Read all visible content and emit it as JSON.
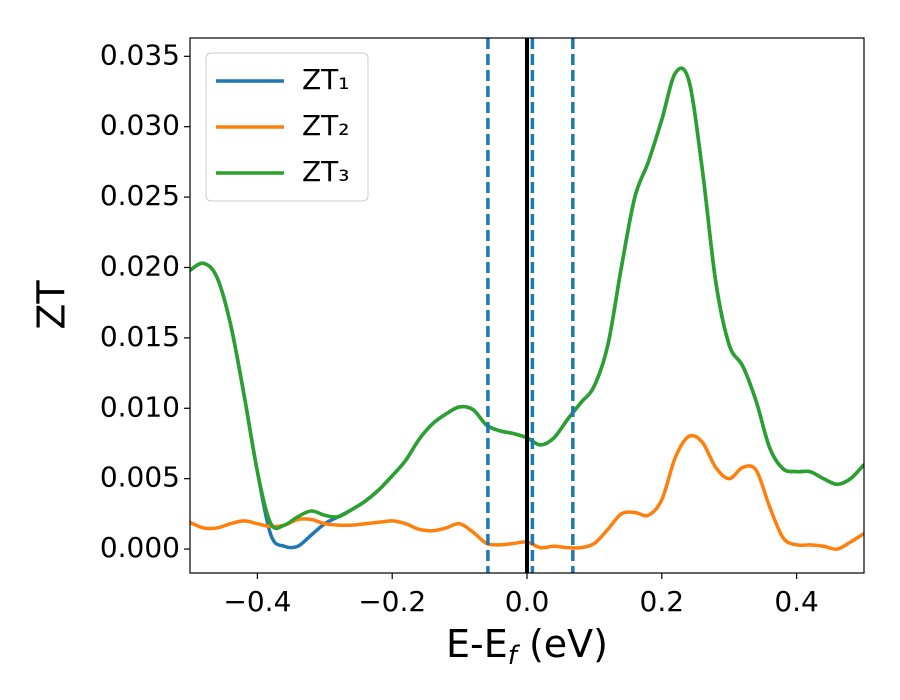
{
  "chart_data": {
    "type": "line",
    "ylabel": "ZT",
    "xlabel": [
      "E-E",
      "f",
      " (eV)"
    ],
    "x": [
      -0.5,
      -0.48,
      -0.46,
      -0.44,
      -0.42,
      -0.4,
      -0.38,
      -0.36,
      -0.34,
      -0.32,
      -0.3,
      -0.28,
      -0.26,
      -0.24,
      -0.22,
      -0.2,
      -0.18,
      -0.16,
      -0.14,
      -0.12,
      -0.1,
      -0.08,
      -0.06,
      -0.04,
      -0.02,
      0,
      0.02,
      0.04,
      0.06,
      0.08,
      0.1,
      0.12,
      0.14,
      0.16,
      0.18,
      0.2,
      0.22,
      0.24,
      0.26,
      0.28,
      0.3,
      0.32,
      0.34,
      0.36,
      0.38,
      0.4,
      0.42,
      0.44,
      0.46,
      0.48,
      0.5
    ],
    "series": [
      {
        "name": "ZT₁",
        "color": "#1f77b4",
        "values": [
          0.0198,
          0.0203,
          0.0193,
          0.016,
          0.011,
          0.0055,
          0.001,
          0.0002,
          0.0002,
          0.001,
          0.0018,
          0.0023,
          0.0028,
          0.0034,
          0.0042,
          0.0052,
          0.0063,
          0.0078,
          0.0089,
          0.0096,
          0.0101,
          0.0099,
          0.0088,
          0.0084,
          0.0082,
          0.0079,
          0.0074,
          0.0079,
          0.0092,
          0.0104,
          0.0116,
          0.0145,
          0.02,
          0.025,
          0.0275,
          0.0305,
          0.0338,
          0.0333,
          0.027,
          0.019,
          0.0145,
          0.013,
          0.0105,
          0.0072,
          0.0057,
          0.0055,
          0.0055,
          0.005,
          0.0046,
          0.005,
          0.006
        ]
      },
      {
        "name": "ZT₂",
        "color": "#ff7f0e",
        "values": [
          0.0019,
          0.0015,
          0.0015,
          0.0018,
          0.002,
          0.0018,
          0.0016,
          0.0017,
          0.0021,
          0.0021,
          0.0018,
          0.0017,
          0.0017,
          0.0018,
          0.0019,
          0.002,
          0.0018,
          0.0014,
          0.0013,
          0.0015,
          0.0018,
          0.0012,
          0.0004,
          0.0003,
          0.0004,
          0.0005,
          0.0001,
          0.0002,
          0.0001,
          0.0001,
          0.0004,
          0.0014,
          0.0025,
          0.0026,
          0.0024,
          0.0035,
          0.0065,
          0.008,
          0.0076,
          0.0058,
          0.005,
          0.0058,
          0.0056,
          0.003,
          0.0008,
          0.0003,
          0.0003,
          0.0002,
          0.0,
          0.0005,
          0.0011
        ]
      },
      {
        "name": "ZT₃",
        "color": "#2ca02c",
        "values": [
          0.0198,
          0.0203,
          0.0193,
          0.016,
          0.011,
          0.0055,
          0.0018,
          0.0017,
          0.0023,
          0.0027,
          0.0024,
          0.0023,
          0.0028,
          0.0034,
          0.0042,
          0.0052,
          0.0063,
          0.0078,
          0.0089,
          0.0096,
          0.0101,
          0.0099,
          0.0088,
          0.0084,
          0.0082,
          0.0079,
          0.0074,
          0.0079,
          0.0092,
          0.0104,
          0.0116,
          0.0145,
          0.02,
          0.025,
          0.0275,
          0.0305,
          0.0338,
          0.0333,
          0.027,
          0.019,
          0.0145,
          0.013,
          0.0105,
          0.0072,
          0.0057,
          0.0055,
          0.0055,
          0.005,
          0.0046,
          0.005,
          0.006
        ]
      }
    ],
    "vlines": [
      {
        "x": 0,
        "color": "#000000",
        "style": "solid"
      },
      {
        "x": -0.058,
        "color": "#1f77b4",
        "style": "dashed"
      },
      {
        "x": 0.008,
        "color": "#1f77b4",
        "style": "dashed"
      },
      {
        "x": 0.068,
        "color": "#1f77b4",
        "style": "dashed"
      }
    ],
    "xlim": [
      -0.5,
      0.5
    ],
    "ylim": [
      -0.0017,
      0.0363
    ],
    "xticks": [
      {
        "value": -0.4,
        "label": "−0.4"
      },
      {
        "value": -0.2,
        "label": "−0.2"
      },
      {
        "value": 0,
        "label": "0.0"
      },
      {
        "value": 0.2,
        "label": "0.2"
      },
      {
        "value": 0.4,
        "label": "0.4"
      }
    ],
    "yticks": [
      {
        "value": 0,
        "label": "0.000"
      },
      {
        "value": 0.005,
        "label": "0.005"
      },
      {
        "value": 0.01,
        "label": "0.010"
      },
      {
        "value": 0.015,
        "label": "0.015"
      },
      {
        "value": 0.02,
        "label": "0.020"
      },
      {
        "value": 0.025,
        "label": "0.025"
      },
      {
        "value": 0.03,
        "label": "0.030"
      },
      {
        "value": 0.035,
        "label": "0.035"
      }
    ],
    "legend": "upper left",
    "grid": false
  }
}
